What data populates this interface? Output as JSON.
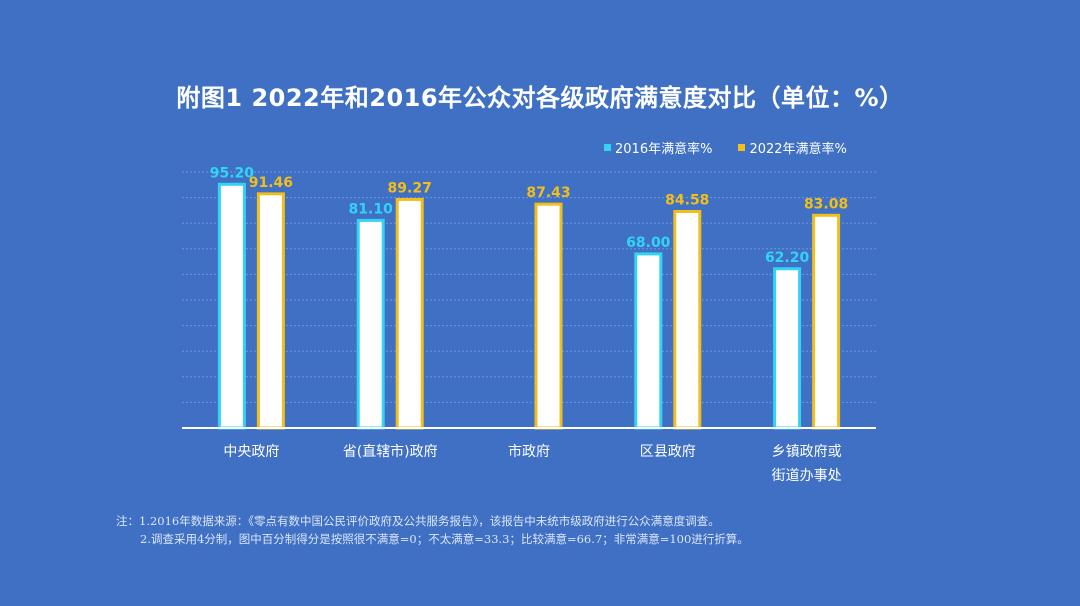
{
  "title": "附图1  2022年和2016年公众对各级政府满意度对比（单位：%）",
  "colors": {
    "background": "#3f70c4",
    "series_2016": "#33d3f5",
    "series_2022": "#f2be1c",
    "bar_fill": "#ffffff"
  },
  "chart_data": {
    "type": "bar",
    "categories": [
      [
        "中央政府"
      ],
      [
        "省(直辖市)政府"
      ],
      [
        "市政府"
      ],
      [
        "区县政府"
      ],
      [
        "乡镇政府或",
        "街道办事处"
      ]
    ],
    "series": [
      {
        "name": "2016年满意率%",
        "values": [
          95.2,
          81.1,
          null,
          68.0,
          62.2
        ],
        "labels": [
          "95.20",
          "81.10",
          "",
          "68.00",
          "62.20"
        ]
      },
      {
        "name": "2022年满意率%",
        "values": [
          91.46,
          89.27,
          87.43,
          84.58,
          83.08
        ],
        "labels": [
          "91.46",
          "89.27",
          "87.43",
          "84.58",
          "83.08"
        ]
      }
    ],
    "ylim": [
      0,
      100
    ],
    "grid": true,
    "legend_position": "top-right"
  },
  "notes": [
    "注：1.2016年数据来源：《零点有数中国公民评价政府及公共服务报告》，该报告中未统市级政府进行公众满意度调查。",
    "2.调查采用4分制，图中百分制得分是按照很不满意=0；不太满意=33.3；比较满意=66.7；非常满意=100进行折算。"
  ]
}
